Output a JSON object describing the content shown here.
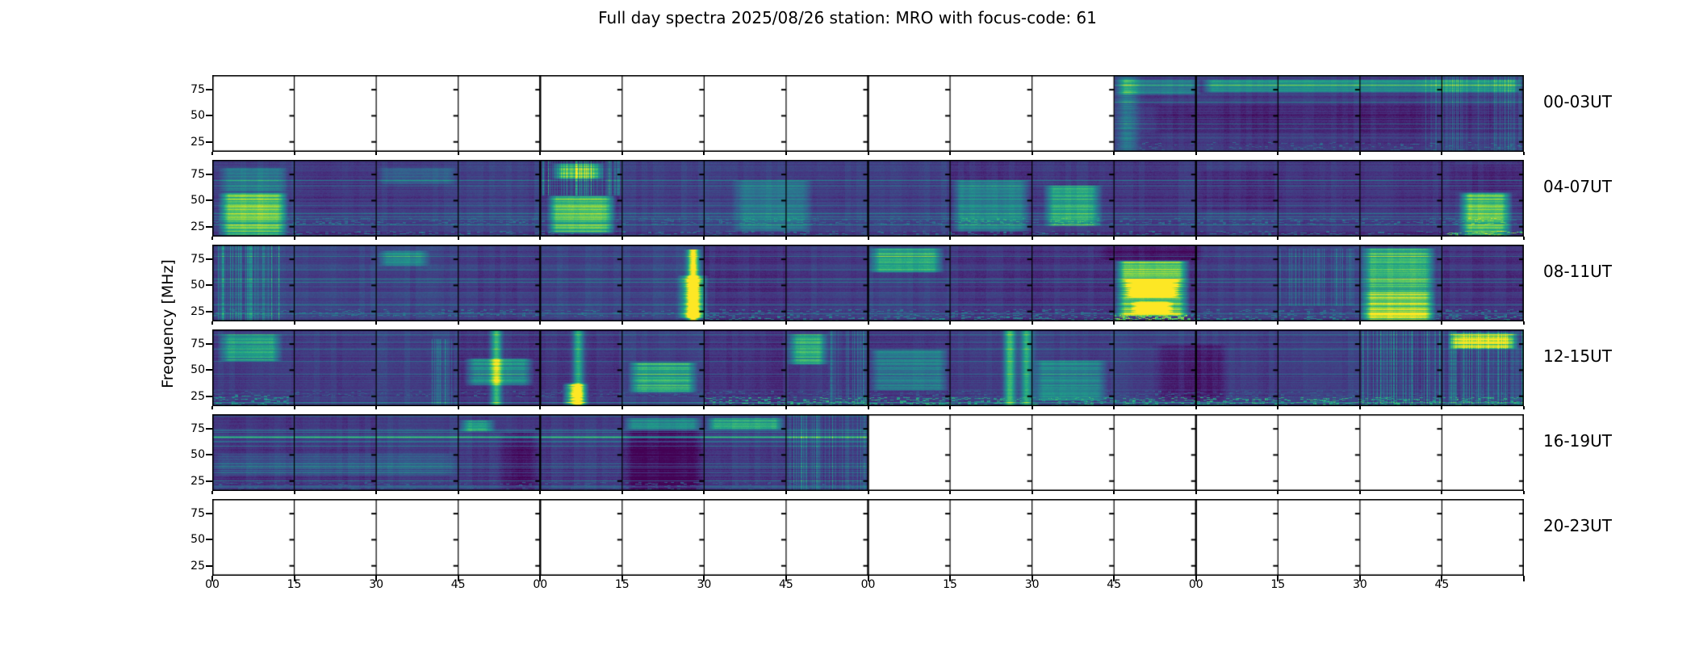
{
  "figure": {
    "title": "Full day spectra 2025/08/26 station: MRO with focus-code: 61",
    "date": "2025/08/26",
    "station": "MRO",
    "focus_code": "61"
  },
  "chart_data": {
    "type": "heatmap",
    "subtype": "radio-spectrogram-grid",
    "title": "Full day spectra 2025/08/26 station: MRO with focus-code: 61",
    "ylabel": "Frequency [MHz]",
    "colormap": "viridis",
    "empty_color": "#ffffff",
    "y_axis": {
      "unit": "MHz",
      "ticks": [
        75,
        50,
        25
      ],
      "range": [
        15.5,
        89
      ]
    },
    "x_axis": {
      "unit": "minutes",
      "minutes_per_row": 240,
      "tick_interval_min": 15,
      "blocks_per_row": 16,
      "tick_labels": [
        "00",
        "15",
        "30",
        "45",
        "00",
        "15",
        "30",
        "45",
        "00",
        "15",
        "30",
        "45",
        "00",
        "15",
        "30",
        "45"
      ]
    },
    "rows": [
      {
        "label": "00-03UT",
        "data_segments_min": [
          [
            165,
            240
          ]
        ],
        "features": [
          {
            "kind": "patch",
            "t": [
              165,
              170
            ],
            "f": [
              16,
              88
            ],
            "v": 0.28
          },
          {
            "kind": "patch",
            "t": [
              165,
              181
            ],
            "f": [
              70,
              85
            ],
            "v": 0.3
          },
          {
            "kind": "patch",
            "t": [
              181,
              240
            ],
            "f": [
              72,
              85
            ],
            "v": 0.42
          },
          {
            "kind": "patch",
            "t": [
              172,
              240
            ],
            "f": [
              33,
              60
            ],
            "v": -0.06
          },
          {
            "kind": "speckle",
            "t": [
              165,
              240
            ],
            "f": [
              17,
              25
            ],
            "v": 0.4,
            "d": 0.12
          },
          {
            "kind": "vstreaks",
            "t": [
              222,
              240
            ],
            "f": [
              16,
              88
            ],
            "v": 0.3
          }
        ]
      },
      {
        "label": "04-07UT",
        "data_segments_min": [
          [
            0,
            240
          ]
        ],
        "features": [
          {
            "kind": "patch",
            "t": [
              1,
              14
            ],
            "f": [
              16,
              58
            ],
            "v": 0.62
          },
          {
            "kind": "patch",
            "t": [
              1,
              14
            ],
            "f": [
              58,
              82
            ],
            "v": 0.25
          },
          {
            "kind": "vstreaks",
            "t": [
              60,
              75
            ],
            "f": [
              55,
              88
            ],
            "v": 0.55
          },
          {
            "kind": "patch",
            "t": [
              61,
              74
            ],
            "f": [
              18,
              55
            ],
            "v": 0.6
          },
          {
            "kind": "patch",
            "t": [
              62,
              72
            ],
            "f": [
              70,
              86
            ],
            "v": 0.55
          },
          {
            "kind": "speckle",
            "t": [
              0,
              240
            ],
            "f": [
              26,
              33
            ],
            "v": 0.42,
            "d": 0.22
          },
          {
            "kind": "speckle",
            "t": [
              0,
              240
            ],
            "f": [
              16,
              21
            ],
            "v": 0.45,
            "d": 0.18
          },
          {
            "kind": "patch",
            "t": [
              95,
              110
            ],
            "f": [
              20,
              70
            ],
            "v": 0.22
          },
          {
            "kind": "patch",
            "t": [
              135,
              150
            ],
            "f": [
              20,
              70
            ],
            "v": 0.32
          },
          {
            "kind": "patch",
            "t": [
              152,
              163
            ],
            "f": [
              25,
              65
            ],
            "v": 0.45
          },
          {
            "kind": "patch",
            "t": [
              180,
              196
            ],
            "f": [
              40,
              80
            ],
            "v": -0.05
          },
          {
            "kind": "patch",
            "t": [
              228,
              238
            ],
            "f": [
              16,
              58
            ],
            "v": 0.6
          },
          {
            "kind": "patch",
            "t": [
              226,
              240
            ],
            "f": [
              58,
              85
            ],
            "v": -0.05
          },
          {
            "kind": "speckle",
            "t": [
              226,
              240
            ],
            "f": [
              16,
              20
            ],
            "v": 0.85,
            "d": 0.3
          },
          {
            "kind": "patch",
            "t": [
              30,
              45
            ],
            "f": [
              65,
              82
            ],
            "v": 0.15
          }
        ]
      },
      {
        "label": "08-11UT",
        "data_segments_min": [
          [
            0,
            240
          ]
        ],
        "features": [
          {
            "kind": "vstreaks",
            "t": [
              1,
              13
            ],
            "f": [
              16,
              88
            ],
            "v": 0.45
          },
          {
            "kind": "patch",
            "t": [
              30,
              40
            ],
            "f": [
              68,
              84
            ],
            "v": 0.3
          },
          {
            "kind": "patch",
            "t": [
              85,
              91
            ],
            "f": [
              18,
              60
            ],
            "v": 0.5
          },
          {
            "kind": "vline",
            "t": [
              88,
              88
            ],
            "f": [
              16,
              84
            ],
            "v": 0.85
          },
          {
            "kind": "patch",
            "t": [
              120,
              134
            ],
            "f": [
              62,
              86
            ],
            "v": 0.45
          },
          {
            "kind": "patch",
            "t": [
              165,
              179
            ],
            "f": [
              20,
              74
            ],
            "v": 0.7
          },
          {
            "kind": "patch",
            "t": [
              167,
              177
            ],
            "f": [
              38,
              56
            ],
            "v": 0.95
          },
          {
            "kind": "patch",
            "t": [
              168,
              176
            ],
            "f": [
              22,
              35
            ],
            "v": 0.95
          },
          {
            "kind": "speckle",
            "t": [
              165,
              179
            ],
            "f": [
              16,
              22
            ],
            "v": 0.95,
            "d": 0.5
          },
          {
            "kind": "patch",
            "t": [
              162,
              182
            ],
            "f": [
              74,
              88
            ],
            "v": -0.08
          },
          {
            "kind": "patch",
            "t": [
              210,
              224
            ],
            "f": [
              16,
              86
            ],
            "v": 0.52
          },
          {
            "kind": "patch",
            "t": [
              210,
              224
            ],
            "f": [
              16,
              45
            ],
            "v": 0.22
          },
          {
            "kind": "vstreaks",
            "t": [
              195,
              209
            ],
            "f": [
              30,
              85
            ],
            "v": 0.3
          },
          {
            "kind": "speckle",
            "t": [
              0,
              240
            ],
            "f": [
              20,
              27
            ],
            "v": 0.45,
            "d": 0.22
          },
          {
            "kind": "speckle",
            "t": [
              90,
              240
            ],
            "f": [
              16,
              20
            ],
            "v": 0.55,
            "d": 0.25
          }
        ]
      },
      {
        "label": "12-15UT",
        "data_segments_min": [
          [
            0,
            240
          ]
        ],
        "features": [
          {
            "kind": "patch",
            "t": [
              1,
              13
            ],
            "f": [
              58,
              85
            ],
            "v": 0.42
          },
          {
            "kind": "speckle",
            "t": [
              0,
              14
            ],
            "f": [
              16,
              26
            ],
            "v": 0.6,
            "d": 0.3
          },
          {
            "kind": "vstreaks",
            "t": [
              40,
              45
            ],
            "f": [
              16,
              80
            ],
            "v": 0.3
          },
          {
            "kind": "patch",
            "t": [
              46,
              59
            ],
            "f": [
              35,
              62
            ],
            "v": 0.4
          },
          {
            "kind": "vline",
            "t": [
              52,
              52
            ],
            "f": [
              16,
              88
            ],
            "v": 0.5
          },
          {
            "kind": "patch",
            "t": [
              64,
              69
            ],
            "f": [
              16,
              38
            ],
            "v": 0.8
          },
          {
            "kind": "vline",
            "t": [
              67,
              67
            ],
            "f": [
              16,
              88
            ],
            "v": 0.45
          },
          {
            "kind": "patch",
            "t": [
              76,
              89
            ],
            "f": [
              28,
              58
            ],
            "v": 0.5
          },
          {
            "kind": "patch",
            "t": [
              105,
              113
            ],
            "f": [
              55,
              85
            ],
            "v": 0.5
          },
          {
            "kind": "vstreaks",
            "t": [
              113,
              120
            ],
            "f": [
              16,
              88
            ],
            "v": 0.35
          },
          {
            "kind": "patch",
            "t": [
              120,
              135
            ],
            "f": [
              30,
              70
            ],
            "v": 0.3
          },
          {
            "kind": "vline",
            "t": [
              146,
              146
            ],
            "f": [
              16,
              88
            ],
            "v": 0.5
          },
          {
            "kind": "vline",
            "t": [
              149,
              149
            ],
            "f": [
              16,
              88
            ],
            "v": 0.45
          },
          {
            "kind": "patch",
            "t": [
              150,
              164
            ],
            "f": [
              20,
              60
            ],
            "v": 0.32
          },
          {
            "kind": "patch",
            "t": [
              172,
              186
            ],
            "f": [
              20,
              75
            ],
            "v": -0.1
          },
          {
            "kind": "patch",
            "t": [
              226,
              239
            ],
            "f": [
              70,
              86
            ],
            "v": 0.8
          },
          {
            "kind": "vstreaks",
            "t": [
              210,
              240
            ],
            "f": [
              16,
              88
            ],
            "v": 0.4
          },
          {
            "kind": "speckle",
            "t": [
              90,
              240
            ],
            "f": [
              16,
              24
            ],
            "v": 0.7,
            "d": 0.28
          },
          {
            "kind": "speckle",
            "t": [
              0,
              240
            ],
            "f": [
              24,
              30
            ],
            "v": 0.35,
            "d": 0.18
          }
        ]
      },
      {
        "label": "16-19UT",
        "data_segments_min": [
          [
            0,
            120
          ]
        ],
        "features": [
          {
            "kind": "hline",
            "t": [
              0,
              120
            ],
            "f": [
              67,
              67
            ],
            "v": 0.55
          },
          {
            "kind": "patch",
            "t": [
              45,
              52
            ],
            "f": [
              72,
              84
            ],
            "v": 0.45
          },
          {
            "kind": "patch",
            "t": [
              52,
              60
            ],
            "f": [
              16,
              72
            ],
            "v": -0.1
          },
          {
            "kind": "patch",
            "t": [
              0,
              45
            ],
            "f": [
              30,
              52
            ],
            "v": 0.12
          },
          {
            "kind": "patch",
            "t": [
              75,
              90
            ],
            "f": [
              16,
              74
            ],
            "v": -0.12
          },
          {
            "kind": "patch",
            "t": [
              75,
              90
            ],
            "f": [
              74,
              86
            ],
            "v": 0.4
          },
          {
            "kind": "patch",
            "t": [
              90,
              105
            ],
            "f": [
              74,
              86
            ],
            "v": 0.5
          },
          {
            "kind": "vstreaks",
            "t": [
              105,
              120
            ],
            "f": [
              16,
              88
            ],
            "v": 0.35
          },
          {
            "kind": "speckle",
            "t": [
              0,
              120
            ],
            "f": [
              16,
              24
            ],
            "v": 0.35,
            "d": 0.15
          }
        ]
      },
      {
        "label": "20-23UT",
        "data_segments_min": [],
        "features": []
      }
    ]
  }
}
